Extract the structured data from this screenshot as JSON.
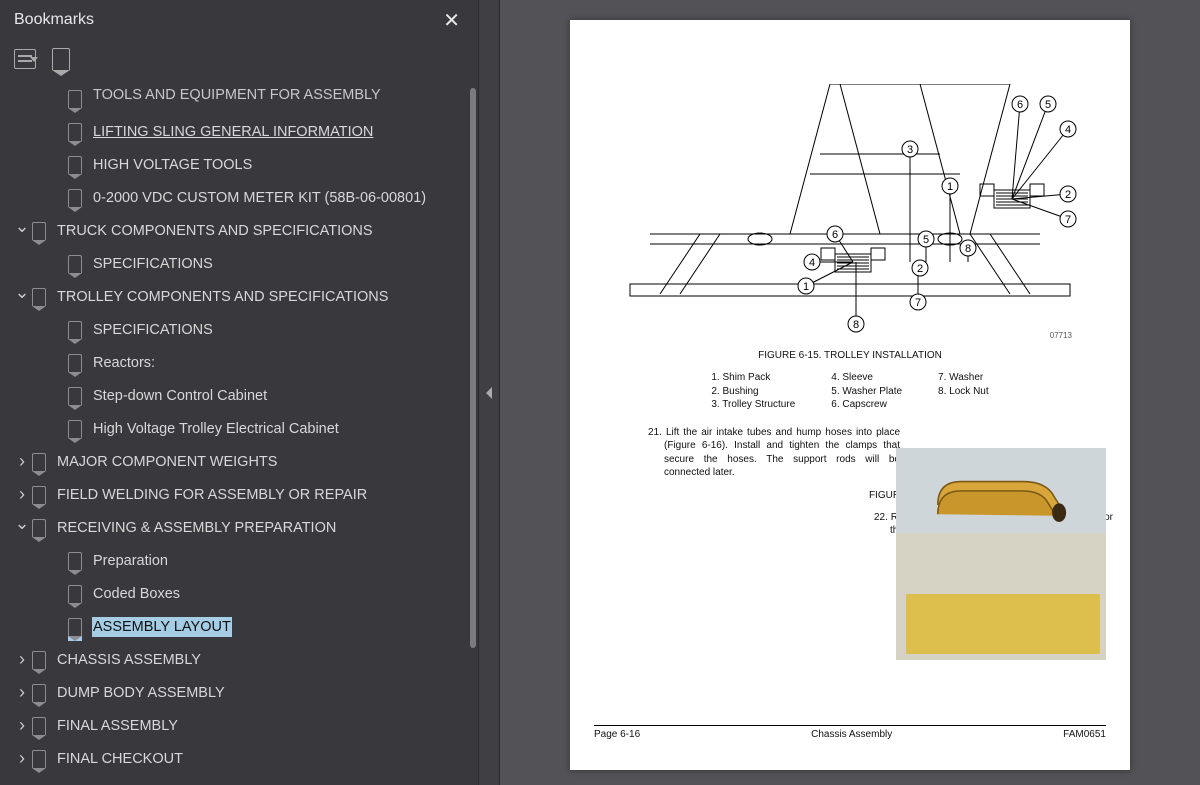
{
  "sidebar": {
    "title": "Bookmarks",
    "items": [
      {
        "indent": 1,
        "chev": "",
        "label": "TOOLS AND EQUIPMENT FOR ASSEMBLY",
        "cls": "cutoff"
      },
      {
        "indent": 1,
        "chev": "",
        "label": "LIFTING SLING GENERAL INFORMATION",
        "cls": "underline"
      },
      {
        "indent": 1,
        "chev": "",
        "label": "HIGH VOLTAGE TOOLS"
      },
      {
        "indent": 1,
        "chev": "",
        "label": "0-2000 VDC CUSTOM METER KIT (58B-06-00801)"
      },
      {
        "indent": 0,
        "chev": "v",
        "label": "TRUCK COMPONENTS AND SPECIFICATIONS"
      },
      {
        "indent": 1,
        "chev": "",
        "label": "SPECIFICATIONS"
      },
      {
        "indent": 0,
        "chev": "v",
        "label": "TROLLEY COMPONENTS AND SPECIFICATIONS"
      },
      {
        "indent": 1,
        "chev": "",
        "label": "SPECIFICATIONS"
      },
      {
        "indent": 1,
        "chev": "",
        "label": "Reactors:"
      },
      {
        "indent": 1,
        "chev": "",
        "label": "Step-down Control Cabinet"
      },
      {
        "indent": 1,
        "chev": "",
        "label": "High Voltage Trolley Electrical Cabinet"
      },
      {
        "indent": 0,
        "chev": ">",
        "label": "MAJOR COMPONENT WEIGHTS"
      },
      {
        "indent": 0,
        "chev": ">",
        "label": "FIELD WELDING FOR ASSEMBLY OR REPAIR"
      },
      {
        "indent": 0,
        "chev": "v",
        "label": "RECEIVING & ASSEMBLY PREPARATION"
      },
      {
        "indent": 1,
        "chev": "",
        "label": "Preparation"
      },
      {
        "indent": 1,
        "chev": "",
        "label": "Coded Boxes"
      },
      {
        "indent": 1,
        "chev": "",
        "label": "ASSEMBLY LAYOUT",
        "selected": true
      },
      {
        "indent": 0,
        "chev": ">",
        "label": "CHASSIS ASSEMBLY"
      },
      {
        "indent": 0,
        "chev": ">",
        "label": "DUMP BODY ASSEMBLY"
      },
      {
        "indent": 0,
        "chev": ">",
        "label": "FINAL ASSEMBLY"
      },
      {
        "indent": 0,
        "chev": ">",
        "label": "FINAL CHECKOUT"
      }
    ]
  },
  "page": {
    "fig1_title": "FIGURE 6-15. TROLLEY INSTALLATION",
    "fig1_id": "07713",
    "legend": {
      "c1": [
        "1. Shim Pack",
        "2. Bushing",
        "3. Trolley Structure"
      ],
      "c2": [
        "4. Sleeve",
        "5. Washer Plate",
        "6. Capscrew"
      ],
      "c3": [
        "7. Washer",
        "8. Lock Nut"
      ]
    },
    "step21_num": "21.",
    "step21": "Lift the air intake tubes and hump hoses into place (Figure 6-16). Install and tighten the clamps that secure the hoses. The support rods will be connected later.",
    "fig2_title": "FIGURE 6-16. AIR INTAKE TUBE INSTALLATION",
    "step22_num": "22.",
    "step22": "Remove all dirt, rust and paint from the mounts for the hydraulic tank.",
    "footer": {
      "left": "Page 6-16",
      "mid": "Chassis Assembly",
      "right": "FAM0651"
    }
  }
}
